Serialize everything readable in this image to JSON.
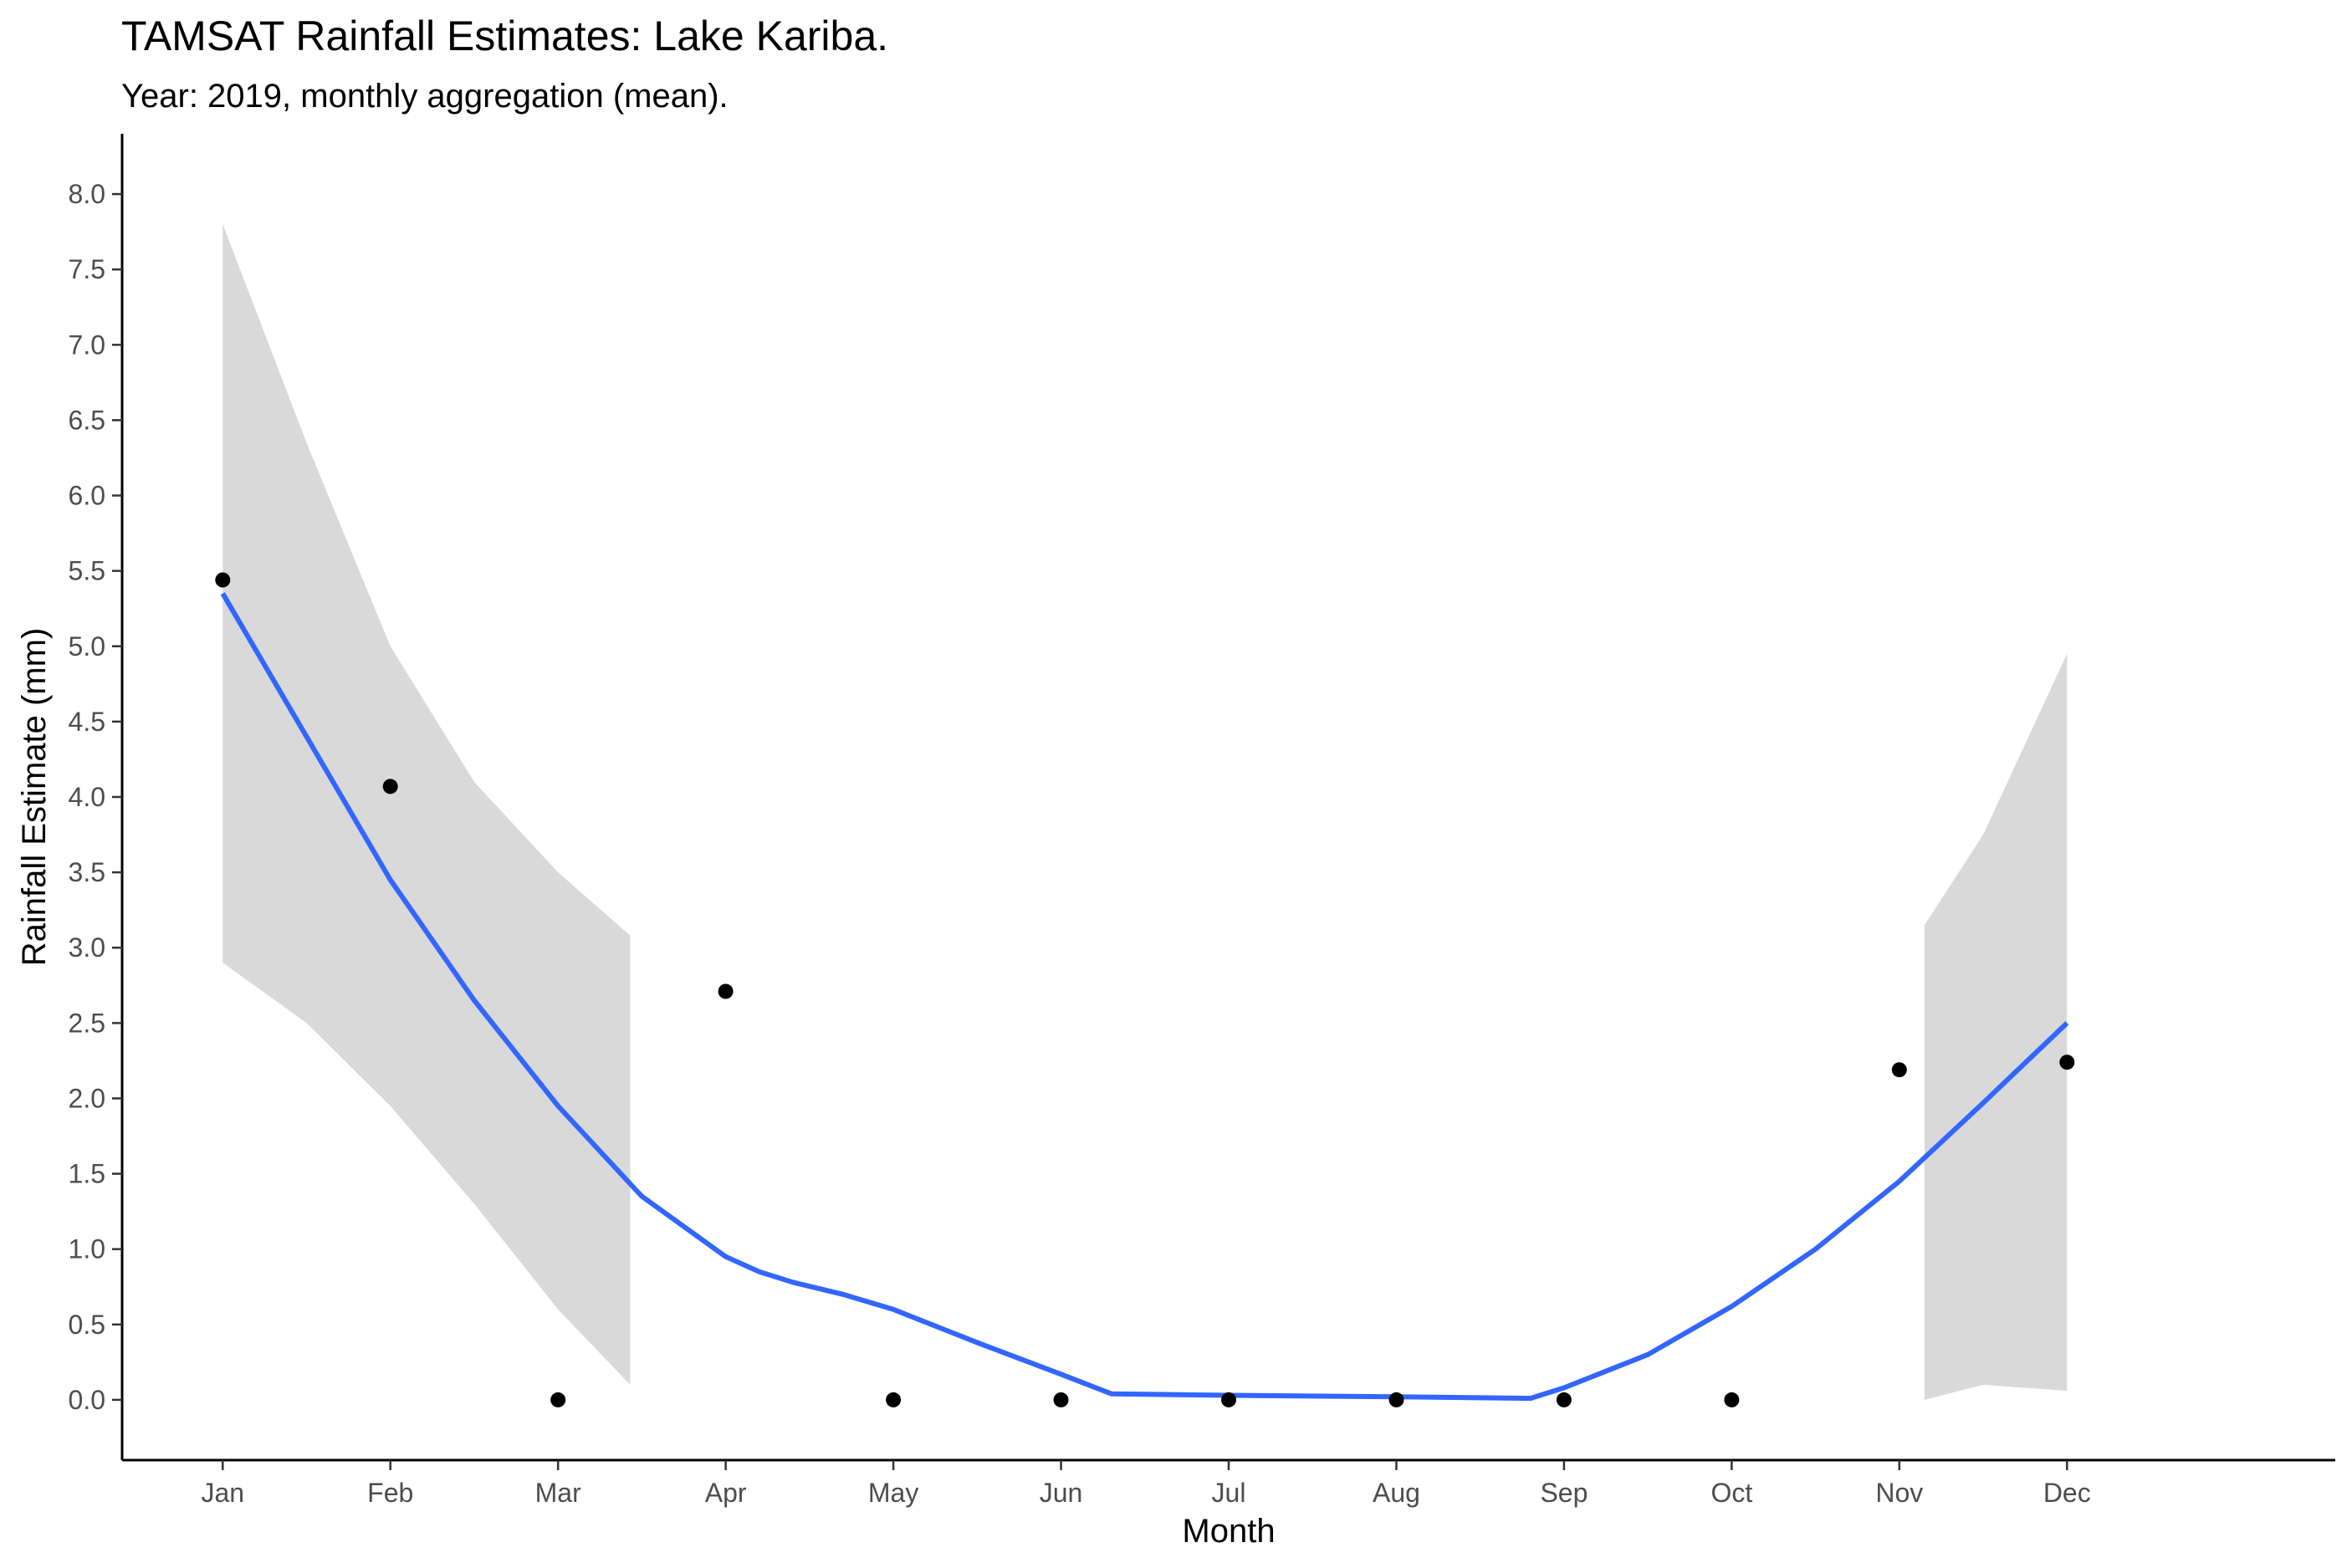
{
  "chart_data": {
    "type": "scatter",
    "title": "TAMSAT Rainfall Estimates: Lake Kariba.",
    "subtitle": "Year: 2019, monthly aggregation (mean).",
    "xlabel": "Month",
    "ylabel": "Rainfall Estimate (mm)",
    "categories": [
      "Jan",
      "Feb",
      "Mar",
      "Apr",
      "May",
      "Jun",
      "Jul",
      "Aug",
      "Sep",
      "Oct",
      "Nov",
      "Dec"
    ],
    "yticks": [
      "0.0",
      "0.5",
      "1.0",
      "1.5",
      "2.0",
      "2.5",
      "3.0",
      "3.5",
      "4.0",
      "4.5",
      "5.0",
      "5.5",
      "6.0",
      "6.5",
      "7.0",
      "7.5",
      "8.0"
    ],
    "ylim": [
      -0.4,
      8.4
    ],
    "xlim": [
      0.4,
      13.6
    ],
    "grid": false,
    "points": {
      "x": [
        "2019-01-01",
        "2019-02-01",
        "2019-03-01",
        "2019-04-01",
        "2019-05-01",
        "2019-06-01",
        "2019-07-01",
        "2019-08-01",
        "2019-09-01",
        "2019-10-01",
        "2019-11-01",
        "2019-12-01"
      ],
      "y": [
        5.44,
        4.07,
        0.0,
        2.71,
        0.0,
        0.0,
        0.0,
        0.0,
        0.0,
        0.0,
        2.19,
        2.24
      ]
    },
    "smooth": {
      "color": "#3366ff",
      "band_color": "#d9d9d9",
      "curve": [
        {
          "m": 1.0,
          "y": 5.35
        },
        {
          "m": 1.5,
          "y": 4.4
        },
        {
          "m": 2.0,
          "y": 3.45
        },
        {
          "m": 2.5,
          "y": 2.65
        },
        {
          "m": 3.0,
          "y": 1.95
        },
        {
          "m": 3.5,
          "y": 1.35
        },
        {
          "m": 4.0,
          "y": 0.95
        },
        {
          "m": 4.2,
          "y": 0.85
        },
        {
          "m": 4.4,
          "y": 0.78
        },
        {
          "m": 4.7,
          "y": 0.7
        },
        {
          "m": 5.0,
          "y": 0.6
        },
        {
          "m": 5.5,
          "y": 0.38
        },
        {
          "m": 6.0,
          "y": 0.17
        },
        {
          "m": 6.3,
          "y": 0.04
        },
        {
          "m": 7.0,
          "y": 0.03
        },
        {
          "m": 8.0,
          "y": 0.02
        },
        {
          "m": 8.8,
          "y": 0.01
        },
        {
          "m": 9.0,
          "y": 0.08
        },
        {
          "m": 9.5,
          "y": 0.3
        },
        {
          "m": 10.0,
          "y": 0.62
        },
        {
          "m": 10.5,
          "y": 1.0
        },
        {
          "m": 11.0,
          "y": 1.45
        },
        {
          "m": 11.5,
          "y": 1.97
        },
        {
          "m": 12.0,
          "y": 2.5
        }
      ],
      "bands": [
        {
          "upper": [
            {
              "m": 1.0,
              "y": 7.8
            },
            {
              "m": 1.5,
              "y": 6.35
            },
            {
              "m": 2.0,
              "y": 5.0
            },
            {
              "m": 2.5,
              "y": 4.1
            },
            {
              "m": 3.0,
              "y": 3.5
            },
            {
              "m": 3.43,
              "y": 3.08
            }
          ],
          "lower": [
            {
              "m": 1.0,
              "y": 2.9
            },
            {
              "m": 1.5,
              "y": 2.5
            },
            {
              "m": 2.0,
              "y": 1.95
            },
            {
              "m": 2.5,
              "y": 1.3
            },
            {
              "m": 3.0,
              "y": 0.6
            },
            {
              "m": 3.43,
              "y": 0.1
            }
          ]
        },
        {
          "upper": [
            {
              "m": 11.15,
              "y": 3.15
            },
            {
              "m": 11.5,
              "y": 3.75
            },
            {
              "m": 12.0,
              "y": 4.95
            }
          ],
          "lower": [
            {
              "m": 11.15,
              "y": 0.0
            },
            {
              "m": 11.5,
              "y": 0.1
            },
            {
              "m": 12.0,
              "y": 0.06
            }
          ]
        }
      ]
    }
  }
}
